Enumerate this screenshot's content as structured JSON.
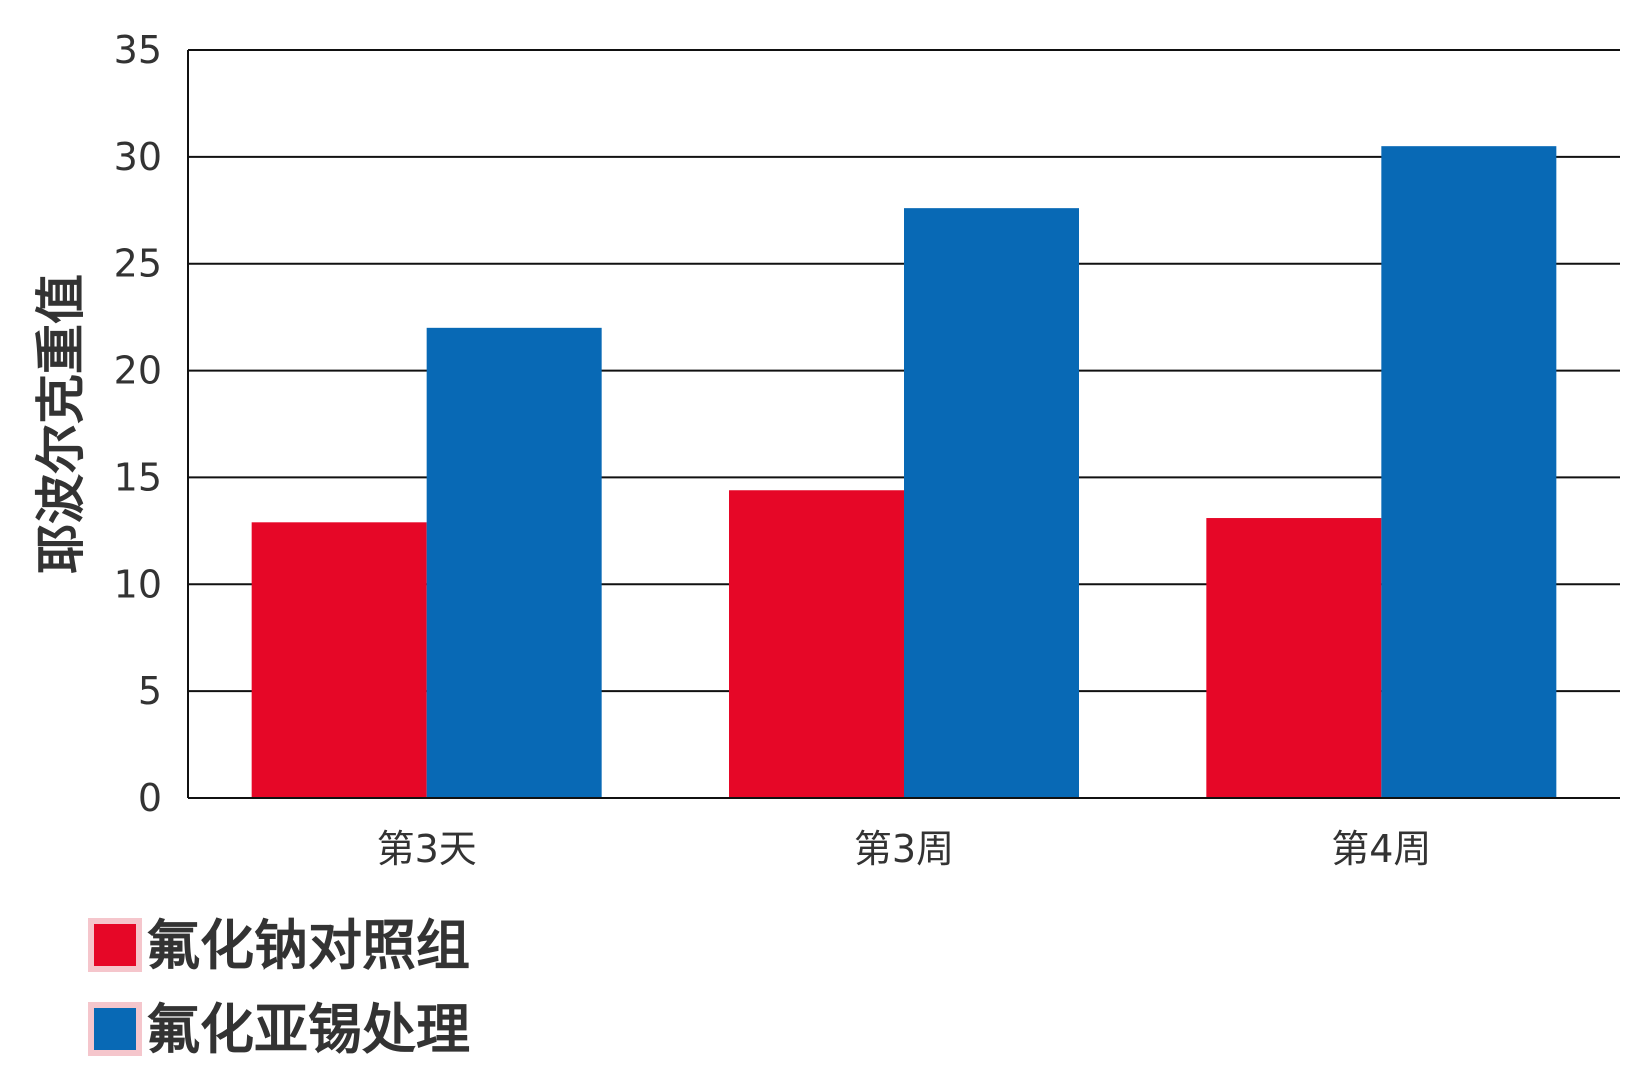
{
  "chart_data": {
    "type": "bar",
    "title": "",
    "xlabel": "",
    "ylabel": "耶波尔克重值",
    "ylim": [
      0,
      35
    ],
    "yticks": [
      0,
      5,
      10,
      15,
      20,
      25,
      30,
      35
    ],
    "grid": true,
    "legend_position": "bottom-left",
    "categories": [
      "第3天",
      "第3周",
      "第4周"
    ],
    "series": [
      {
        "name": "氟化钠对照组",
        "color": "#e60727",
        "values": [
          12.9,
          14.4,
          13.1
        ]
      },
      {
        "name": "氟化亚锡处理",
        "color": "#0869b5",
        "values": [
          22.0,
          27.6,
          30.5
        ]
      }
    ],
    "legend_swatch_border": "#f5c6cc"
  }
}
